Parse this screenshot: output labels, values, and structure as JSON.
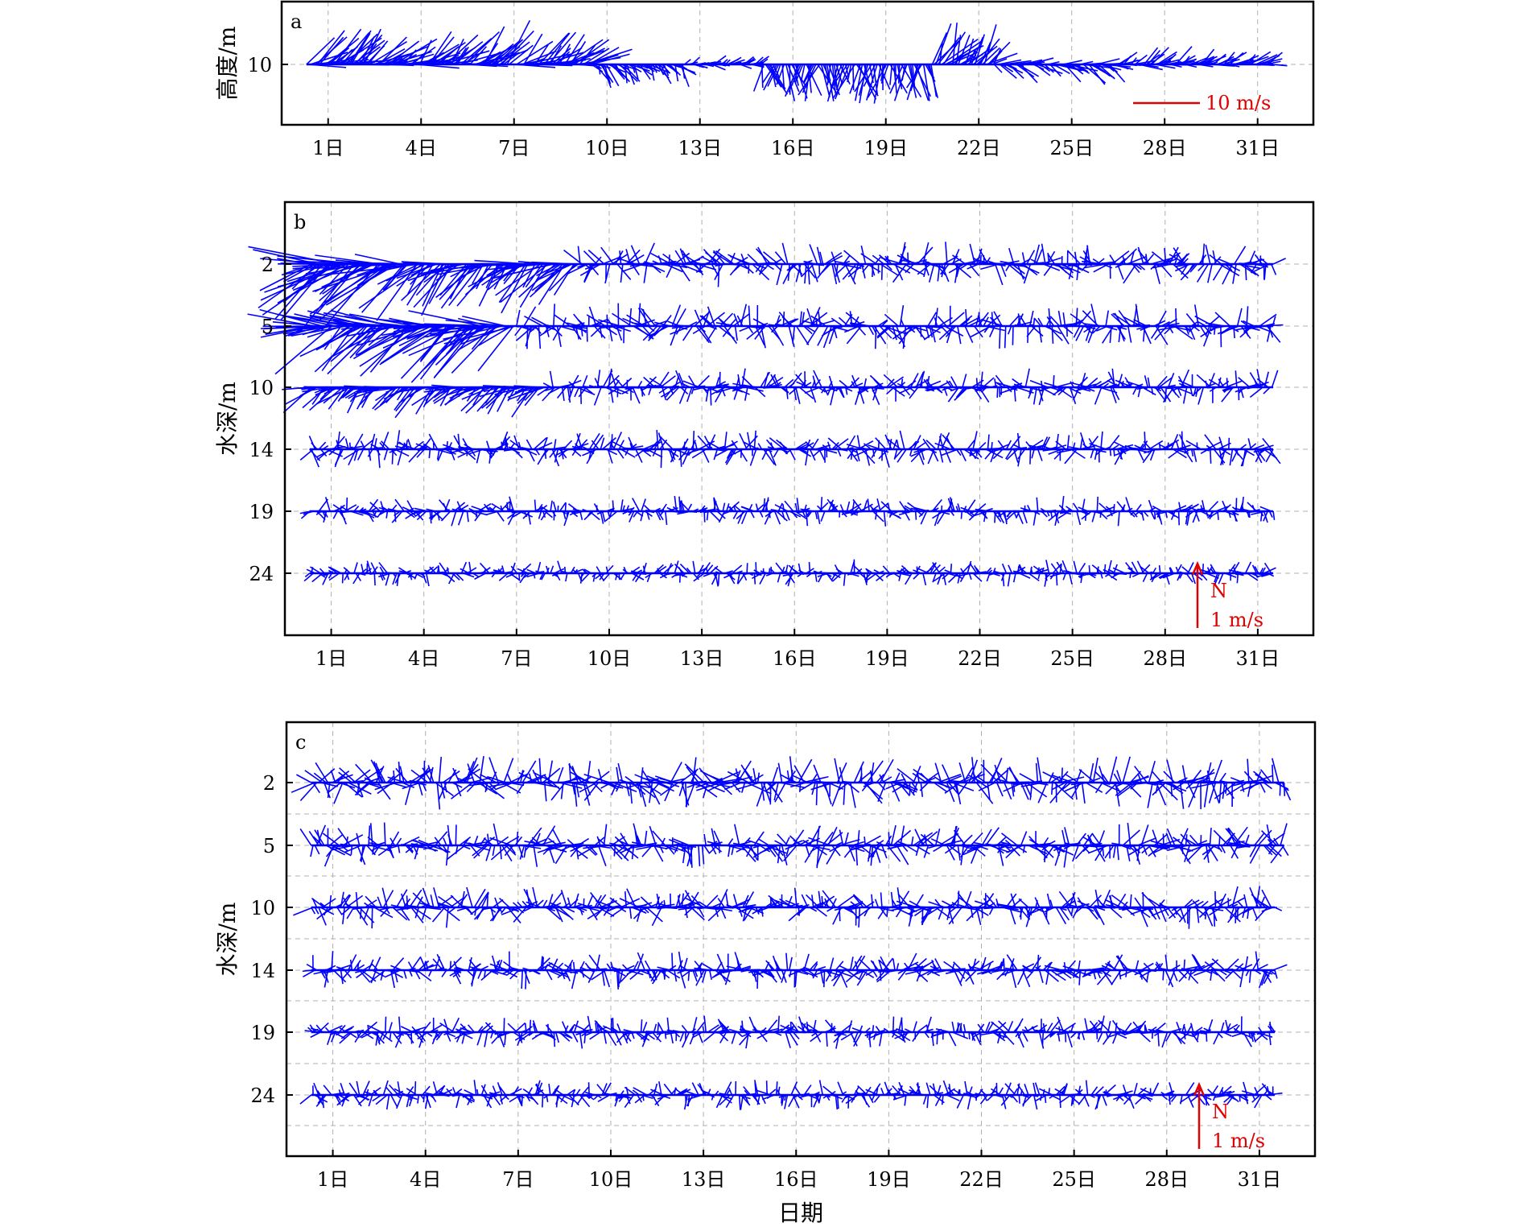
{
  "chart_data": [
    {
      "panel": "a",
      "type": "vector-stick",
      "ylabel": "高度/m",
      "yticks": [
        {
          "label": "10",
          "depth": 10
        }
      ],
      "x": {
        "tick_labels": [
          "1日",
          "4日",
          "7日",
          "10日",
          "13日",
          "16日",
          "19日",
          "22日",
          "25日",
          "28日",
          "31日"
        ],
        "tick_days": [
          1,
          4,
          7,
          10,
          13,
          16,
          19,
          22,
          25,
          28,
          31
        ],
        "range_days": [
          -0.5,
          32.8
        ]
      },
      "grid": true,
      "scale": {
        "label": "10 m/s",
        "magnitude": 10,
        "units": "m/s"
      },
      "segments": [
        {
          "start": 0.3,
          "end": 9.5,
          "speed": 10,
          "dir": 60
        },
        {
          "start": 9.5,
          "end": 12.5,
          "speed": 5,
          "dir": 140
        },
        {
          "start": 12.5,
          "end": 15,
          "speed": 3,
          "dir": 80
        },
        {
          "start": 15,
          "end": 20.5,
          "speed": 8,
          "dir": 180
        },
        {
          "start": 20.5,
          "end": 22.5,
          "speed": 9,
          "dir": 40
        },
        {
          "start": 22.5,
          "end": 26.5,
          "speed": 6,
          "dir": 110
        },
        {
          "start": 26.5,
          "end": 31.5,
          "speed": 5,
          "dir": 70
        }
      ]
    },
    {
      "panel": "b",
      "type": "vector-stick",
      "ylabel": "水深/m",
      "yticks": [
        {
          "label": "2",
          "depth": 2
        },
        {
          "label": "5",
          "depth": 5
        },
        {
          "label": "10",
          "depth": 10
        },
        {
          "label": "14",
          "depth": 14
        },
        {
          "label": "19",
          "depth": 19
        },
        {
          "label": "24",
          "depth": 24
        }
      ],
      "x": {
        "tick_labels": [
          "1日",
          "4日",
          "7日",
          "10日",
          "13日",
          "16日",
          "19日",
          "22日",
          "25日",
          "28日",
          "31日"
        ],
        "tick_days": [
          1,
          4,
          7,
          10,
          13,
          16,
          19,
          22,
          25,
          28,
          31
        ],
        "range_days": [
          -0.5,
          32.8
        ]
      },
      "grid": true,
      "scale": {
        "north_label": "N",
        "label": "1 m/s",
        "magnitude": 1,
        "units": "m/s"
      },
      "series": [
        {
          "depth": 2,
          "segments": [
            {
              "start": 0.3,
              "end": 4,
              "speed": 1.2,
              "dir": 250
            },
            {
              "start": 4,
              "end": 9,
              "speed": 0.8,
              "dir": 240
            },
            {
              "start": 9,
              "end": 31.5,
              "speed": 0.3,
              "dir": 0
            }
          ]
        },
        {
          "depth": 5,
          "segments": [
            {
              "start": 0.3,
              "end": 7,
              "speed": 1.0,
              "dir": 250
            },
            {
              "start": 7,
              "end": 31.5,
              "speed": 0.3,
              "dir": 0
            }
          ]
        },
        {
          "depth": 10,
          "segments": [
            {
              "start": 0.3,
              "end": 8,
              "speed": 0.5,
              "dir": 240
            },
            {
              "start": 8,
              "end": 31.5,
              "speed": 0.25,
              "dir": 0
            }
          ]
        },
        {
          "depth": 14,
          "segments": [
            {
              "start": 0.3,
              "end": 31.5,
              "speed": 0.25,
              "dir": 0
            }
          ]
        },
        {
          "depth": 19,
          "segments": [
            {
              "start": 0.3,
              "end": 31.5,
              "speed": 0.2,
              "dir": 0
            }
          ]
        },
        {
          "depth": 24,
          "segments": [
            {
              "start": 0.3,
              "end": 31.5,
              "speed": 0.18,
              "dir": 0
            }
          ]
        }
      ]
    },
    {
      "panel": "c",
      "type": "vector-stick",
      "ylabel": "水深/m",
      "xlabel": "日期",
      "yticks": [
        {
          "label": "2",
          "depth": 2
        },
        {
          "label": "5",
          "depth": 5
        },
        {
          "label": "10",
          "depth": 10
        },
        {
          "label": "14",
          "depth": 14
        },
        {
          "label": "19",
          "depth": 19
        },
        {
          "label": "24",
          "depth": 24
        }
      ],
      "x": {
        "tick_labels": [
          "1日",
          "4日",
          "7日",
          "10日",
          "13日",
          "16日",
          "19日",
          "22日",
          "25日",
          "28日",
          "31日"
        ],
        "tick_days": [
          1,
          4,
          7,
          10,
          13,
          16,
          19,
          22,
          25,
          28,
          31
        ],
        "range_days": [
          -0.5,
          32.8
        ]
      },
      "grid": true,
      "scale": {
        "north_label": "N",
        "label": "1 m/s",
        "magnitude": 1,
        "units": "m/s"
      },
      "series": [
        {
          "depth": 2,
          "segments": [
            {
              "start": 0.3,
              "end": 31.8,
              "speed": 0.35,
              "dir": 0
            }
          ]
        },
        {
          "depth": 5,
          "segments": [
            {
              "start": 0.3,
              "end": 31.8,
              "speed": 0.3,
              "dir": 0
            }
          ]
        },
        {
          "depth": 10,
          "segments": [
            {
              "start": 0.3,
              "end": 31.5,
              "speed": 0.28,
              "dir": 0
            }
          ]
        },
        {
          "depth": 14,
          "segments": [
            {
              "start": 0.3,
              "end": 31.5,
              "speed": 0.25,
              "dir": 0
            }
          ]
        },
        {
          "depth": 19,
          "segments": [
            {
              "start": 0.3,
              "end": 31.5,
              "speed": 0.22,
              "dir": 0
            }
          ]
        },
        {
          "depth": 24,
          "segments": [
            {
              "start": 0.3,
              "end": 31.5,
              "speed": 0.2,
              "dir": 0
            }
          ]
        }
      ]
    }
  ],
  "colors": {
    "vector": "#0000ff",
    "scale": "#e00000",
    "grid": "#b0b0b0",
    "axis": "#000000"
  }
}
